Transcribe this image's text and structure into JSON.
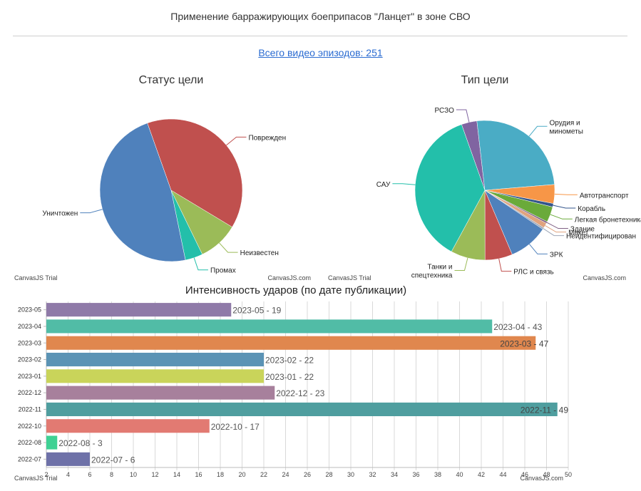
{
  "page": {
    "title": "Применение барражирующих боеприпасов \"Ланцет\" в зоне СВО",
    "episodes_link": "Всего видео эпизодов: 251",
    "watermark": "CanvasJS Trial",
    "watermark_site": "CanvasJS.com"
  },
  "chart_data": [
    {
      "type": "pie",
      "title": "Статус цели",
      "slices": [
        {
          "label": "Поврежден",
          "value": 98,
          "color": "#c0504e"
        },
        {
          "label": "Неизвестен",
          "value": 23,
          "color": "#9bbb58"
        },
        {
          "label": "Промах",
          "value": 10,
          "color": "#23bfaa"
        },
        {
          "label": "Уничтожен",
          "value": 120,
          "color": "#4f81bc"
        }
      ]
    },
    {
      "type": "pie",
      "title": "Тип цели",
      "slices": [
        {
          "label": "РСЗО",
          "value": 9,
          "color": "#8064a1"
        },
        {
          "label": "Орудия и\nминометы",
          "value": 64,
          "color": "#4aacc5"
        },
        {
          "label": "Автотранспорт",
          "value": 11,
          "color": "#f79647"
        },
        {
          "label": "Корабль",
          "value": 2,
          "color": "#33558b"
        },
        {
          "label": "Легкая бронетехника",
          "value": 9,
          "color": "#6aaa3a"
        },
        {
          "label": "Здание",
          "value": 1,
          "color": "#7f6084"
        },
        {
          "label": "Макет",
          "value": 3,
          "color": "#e0a37e"
        },
        {
          "label": "Неидентифицирован",
          "value": 1,
          "color": "#9fa8b8"
        },
        {
          "label": "ЗРК",
          "value": 23,
          "color": "#4f81bc"
        },
        {
          "label": "РЛС и связь",
          "value": 16,
          "color": "#c0504e"
        },
        {
          "label": "Танки и\nспецтехника",
          "value": 20,
          "color": "#9bbb58"
        },
        {
          "label": "САУ",
          "value": 92,
          "color": "#23bfaa"
        }
      ]
    },
    {
      "type": "bar",
      "orientation": "horizontal",
      "title": "Интенсивность ударов (по дате публикации)",
      "xlim": [
        2,
        50
      ],
      "ticks": [
        2,
        4,
        6,
        8,
        10,
        12,
        14,
        16,
        18,
        20,
        22,
        24,
        26,
        28,
        30,
        32,
        34,
        36,
        38,
        40,
        42,
        44,
        46,
        48,
        50
      ],
      "grid": true,
      "categories": [
        "2023-05",
        "2023-04",
        "2023-03",
        "2023-02",
        "2023-01",
        "2022-12",
        "2022-11",
        "2022-10",
        "2022-08",
        "2022-07"
      ],
      "values": [
        19,
        43,
        47,
        22,
        22,
        23,
        49,
        17,
        3,
        6
      ],
      "data_labels": [
        "2023-05 - 19",
        "2023-04 - 43",
        "2023-03 - 47",
        "2023-02 - 22",
        "2023-01 - 22",
        "2022-12 - 23",
        "2022-11 - 49",
        "2022-10 - 17",
        "2022-08 - 3",
        "2022-07 - 6"
      ],
      "colors": [
        "#8f7aa8",
        "#51bca6",
        "#e0874e",
        "#5b93b5",
        "#c9d45a",
        "#a7809c",
        "#4f9e9f",
        "#e27a72",
        "#3fd194",
        "#6e71a8"
      ]
    }
  ]
}
